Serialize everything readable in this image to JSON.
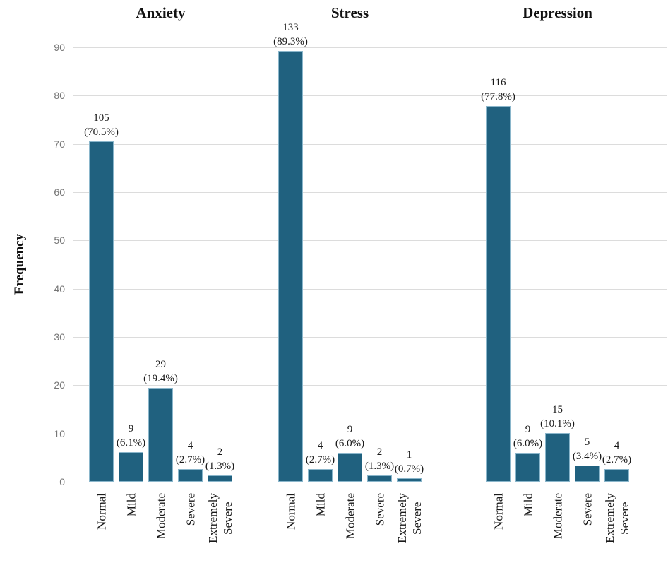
{
  "chart_data": {
    "type": "bar",
    "ylabel": "Frequency",
    "ylim": [
      0,
      90
    ],
    "ytick_step": 10,
    "grid": true,
    "legend": false,
    "bar_color": "#20617F",
    "bar_border_color": "#8AB6CB",
    "gridline_color": "#DCDCDC",
    "categories": [
      "Normal",
      "Mild",
      "Moderate",
      "Severe",
      "Extremely\nSevere"
    ],
    "groups": [
      {
        "title": "Anxiety",
        "counts": [
          105,
          9,
          29,
          4,
          2
        ],
        "percents": [
          70.5,
          6.1,
          19.4,
          2.7,
          1.3
        ]
      },
      {
        "title": "Stress",
        "counts": [
          133,
          4,
          9,
          2,
          1
        ],
        "percents": [
          89.3,
          2.7,
          6.0,
          1.3,
          0.7
        ]
      },
      {
        "title": "Depression",
        "counts": [
          116,
          9,
          15,
          5,
          4
        ],
        "percents": [
          77.8,
          6.0,
          10.1,
          3.4,
          2.7
        ]
      }
    ],
    "value_label_format": "count over (percent%)",
    "bar_heights_represent": "percent"
  }
}
